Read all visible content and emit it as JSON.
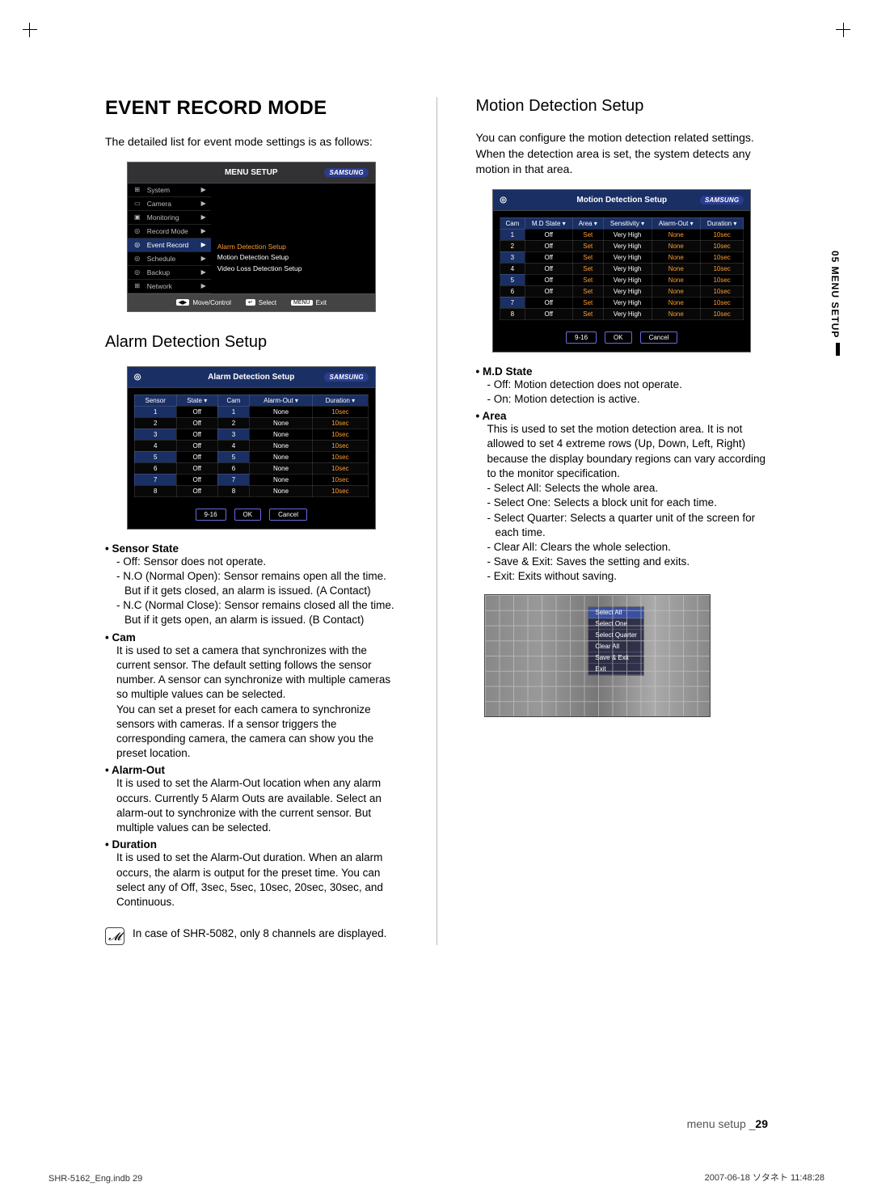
{
  "left": {
    "h1": "EVENT RECORD MODE",
    "intro": "The detailed list for event mode settings is as follows:",
    "menuSetup": {
      "title": "MENU SETUP",
      "items": [
        {
          "icon": "⊞",
          "label": "System"
        },
        {
          "icon": "▭",
          "label": "Camera"
        },
        {
          "icon": "▣",
          "label": "Monitoring"
        },
        {
          "icon": "◎",
          "label": "Record Mode"
        },
        {
          "icon": "◎",
          "label": "Event Record",
          "sel": true
        },
        {
          "icon": "◎",
          "label": "Schedule"
        },
        {
          "icon": "◎",
          "label": "Backup"
        },
        {
          "icon": "⊞",
          "label": "Network"
        }
      ],
      "sub": [
        "Alarm Detection Setup",
        "Motion Detection Setup",
        "Video Loss Detection Setup"
      ],
      "footer": {
        "move": "Move/Control",
        "select": "Select",
        "exit": "Exit"
      }
    },
    "h2": "Alarm Detection Setup",
    "alarmTable": {
      "title": "Alarm Detection Setup",
      "headers": [
        "Sensor",
        "State",
        "",
        "Cam",
        "",
        "Alarm-Out",
        "",
        "Duration",
        ""
      ],
      "rows": [
        [
          "1",
          "Off",
          "1",
          "None",
          "10sec"
        ],
        [
          "2",
          "Off",
          "2",
          "None",
          "10sec"
        ],
        [
          "3",
          "Off",
          "3",
          "None",
          "10sec"
        ],
        [
          "4",
          "Off",
          "4",
          "None",
          "10sec"
        ],
        [
          "5",
          "Off",
          "5",
          "None",
          "10sec"
        ],
        [
          "6",
          "Off",
          "6",
          "None",
          "10sec"
        ],
        [
          "7",
          "Off",
          "7",
          "None",
          "10sec"
        ],
        [
          "8",
          "Off",
          "8",
          "None",
          "10sec"
        ]
      ],
      "btns": [
        "9-16",
        "OK",
        "Cancel"
      ]
    },
    "sections": [
      {
        "head": "Sensor State",
        "dashes": [
          "Off: Sensor does not operate.",
          "N.O (Normal Open): Sensor remains open all the time. But if it gets closed, an alarm is issued. (A Contact)",
          "N.C (Normal Close): Sensor remains closed all the time. But if it gets open, an alarm is issued. (B Contact)"
        ]
      },
      {
        "head": "Cam",
        "body": "It is used to set a camera that synchronizes with the current sensor. The default setting follows the sensor number. A sensor can synchronize with multiple cameras so multiple values can be selected.\nYou can set a preset for each camera to synchronize sensors with cameras. If a sensor triggers the corresponding camera, the camera can show you the preset location."
      },
      {
        "head": "Alarm-Out",
        "body": "It is used to set the Alarm-Out location when any alarm occurs. Currently 5 Alarm Outs are available. Select an alarm-out to synchronize with the current sensor. But multiple values can be selected."
      },
      {
        "head": "Duration",
        "body": "It is used to set the Alarm-Out duration. When an alarm occurs, the alarm is output for the preset time. You can select any of Off, 3sec, 5sec, 10sec, 20sec, 30sec, and Continuous."
      }
    ],
    "note": "In case of SHR-5082, only 8 channels are displayed."
  },
  "right": {
    "h2": "Motion Detection Setup",
    "intro": "You can configure the motion detection related settings. When the detection area is set, the system detects any motion in that area.",
    "mdTable": {
      "title": "Motion Detection Setup",
      "headers": [
        "Cam",
        "M.D State",
        "",
        "Area",
        "",
        "Sensitivity",
        "",
        "Alarm-Out",
        "",
        "Duration",
        ""
      ],
      "rows": [
        [
          "1",
          "Off",
          "Set",
          "Very High",
          "None",
          "10sec"
        ],
        [
          "2",
          "Off",
          "Set",
          "Very High",
          "None",
          "10sec"
        ],
        [
          "3",
          "Off",
          "Set",
          "Very High",
          "None",
          "10sec"
        ],
        [
          "4",
          "Off",
          "Set",
          "Very High",
          "None",
          "10sec"
        ],
        [
          "5",
          "Off",
          "Set",
          "Very High",
          "None",
          "10sec"
        ],
        [
          "6",
          "Off",
          "Set",
          "Very High",
          "None",
          "10sec"
        ],
        [
          "7",
          "Off",
          "Set",
          "Very High",
          "None",
          "10sec"
        ],
        [
          "8",
          "Off",
          "Set",
          "Very High",
          "None",
          "10sec"
        ]
      ],
      "btns": [
        "9-16",
        "OK",
        "Cancel"
      ]
    },
    "sections": [
      {
        "head": "M.D State",
        "dashes": [
          "Off: Motion detection does not operate.",
          "On: Motion detection is active."
        ]
      },
      {
        "head": "Area",
        "body": "This is used to set the motion detection area. It is not allowed to set 4 extreme rows (Up, Down, Left, Right) because the display boundary regions can vary according to the monitor specification.",
        "dashes": [
          "Select All: Selects the whole area.",
          "Select One: Selects a block unit for each time.",
          "Select Quarter: Selects a quarter unit of the screen for each time.",
          "Clear All: Clears the whole selection.",
          "Save & Exit: Saves the setting and exits.",
          "Exit: Exits without saving."
        ]
      }
    ],
    "areaMenu": [
      "Select All",
      "Select One",
      "Select Quarter",
      "Clear All",
      "Save & Exit",
      "Exit"
    ]
  },
  "sidetab": "05 MENU SETUP",
  "footerRight": {
    "a": "menu setup _",
    "b": "29"
  },
  "printLeft": "SHR-5162_Eng.indb   29",
  "printRight": "2007-06-18   ソタネト 11:48:28"
}
